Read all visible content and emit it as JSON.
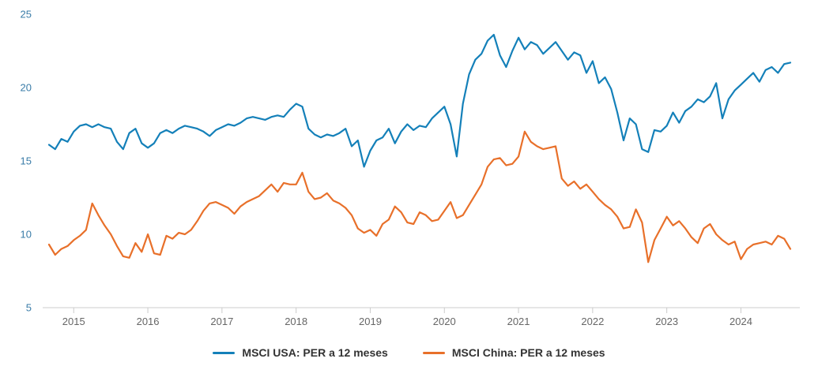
{
  "chart_data": {
    "type": "line",
    "title": "",
    "xlabel": "",
    "ylabel": "",
    "x_start": "2014-09",
    "x_end": "2024-09",
    "frequency": "monthly",
    "ylim": [
      5,
      25
    ],
    "y_ticks": [
      5,
      10,
      15,
      20,
      25
    ],
    "x_tick_labels": [
      "2015",
      "2016",
      "2017",
      "2018",
      "2019",
      "2020",
      "2021",
      "2022",
      "2023",
      "2024"
    ],
    "grid": false,
    "legend_position": "bottom",
    "series": [
      {
        "name": "MSCI USA: PER a 12 meses",
        "color": "#1480b9",
        "values": [
          16.1,
          15.8,
          16.5,
          16.3,
          17.0,
          17.4,
          17.5,
          17.3,
          17.5,
          17.3,
          17.2,
          16.3,
          15.8,
          16.9,
          17.2,
          16.2,
          15.9,
          16.2,
          16.9,
          17.1,
          16.9,
          17.2,
          17.4,
          17.3,
          17.2,
          17.0,
          16.7,
          17.1,
          17.3,
          17.5,
          17.4,
          17.6,
          17.9,
          18.0,
          17.9,
          17.8,
          18.0,
          18.1,
          18.0,
          18.5,
          18.9,
          18.7,
          17.2,
          16.8,
          16.6,
          16.8,
          16.7,
          16.9,
          17.2,
          16.0,
          16.4,
          14.6,
          15.7,
          16.4,
          16.6,
          17.2,
          16.2,
          17.0,
          17.5,
          17.1,
          17.4,
          17.3,
          17.9,
          18.3,
          18.7,
          17.5,
          15.3,
          18.9,
          20.9,
          21.9,
          22.3,
          23.2,
          23.6,
          22.2,
          21.4,
          22.5,
          23.4,
          22.6,
          23.1,
          22.9,
          22.3,
          22.7,
          23.1,
          22.5,
          21.9,
          22.4,
          22.2,
          21.0,
          21.8,
          20.3,
          20.7,
          19.9,
          18.3,
          16.4,
          17.9,
          17.5,
          15.8,
          15.6,
          17.1,
          17.0,
          17.4,
          18.3,
          17.6,
          18.4,
          18.7,
          19.2,
          19.0,
          19.4,
          20.3,
          17.9,
          19.2,
          19.8,
          20.2,
          20.6,
          21.0,
          20.4,
          21.2,
          21.4,
          21.0,
          21.6,
          21.7
        ]
      },
      {
        "name": "MSCI China: PER a 12 meses",
        "color": "#e8702a",
        "values": [
          9.3,
          8.6,
          9.0,
          9.2,
          9.6,
          9.9,
          10.3,
          12.1,
          11.3,
          10.6,
          10.0,
          9.2,
          8.5,
          8.4,
          9.4,
          8.8,
          10.0,
          8.7,
          8.6,
          9.9,
          9.7,
          10.1,
          10.0,
          10.3,
          10.9,
          11.6,
          12.1,
          12.2,
          12.0,
          11.8,
          11.4,
          11.9,
          12.2,
          12.4,
          12.6,
          13.0,
          13.4,
          12.9,
          13.5,
          13.4,
          13.4,
          14.2,
          12.9,
          12.4,
          12.5,
          12.8,
          12.3,
          12.1,
          11.8,
          11.3,
          10.4,
          10.1,
          10.3,
          9.9,
          10.7,
          11.0,
          11.9,
          11.5,
          10.8,
          10.7,
          11.5,
          11.3,
          10.9,
          11.0,
          11.6,
          12.2,
          11.1,
          11.3,
          12.0,
          12.7,
          13.4,
          14.6,
          15.1,
          15.2,
          14.7,
          14.8,
          15.3,
          17.0,
          16.3,
          16.0,
          15.8,
          15.9,
          16.0,
          13.8,
          13.3,
          13.6,
          13.1,
          13.4,
          12.9,
          12.4,
          12.0,
          11.7,
          11.2,
          10.4,
          10.5,
          11.7,
          10.8,
          8.1,
          9.6,
          10.4,
          11.2,
          10.6,
          10.9,
          10.4,
          9.8,
          9.4,
          10.4,
          10.7,
          10.0,
          9.6,
          9.3,
          9.5,
          8.3,
          9.0,
          9.3,
          9.4,
          9.5,
          9.3,
          9.9,
          9.7,
          9.0
        ]
      }
    ]
  },
  "colors": {
    "background": "#ffffff",
    "y_axis_label": "#3a7ca8",
    "x_axis_label": "#666666",
    "axis_line": "#cccccc",
    "legend_text": "#333333"
  }
}
